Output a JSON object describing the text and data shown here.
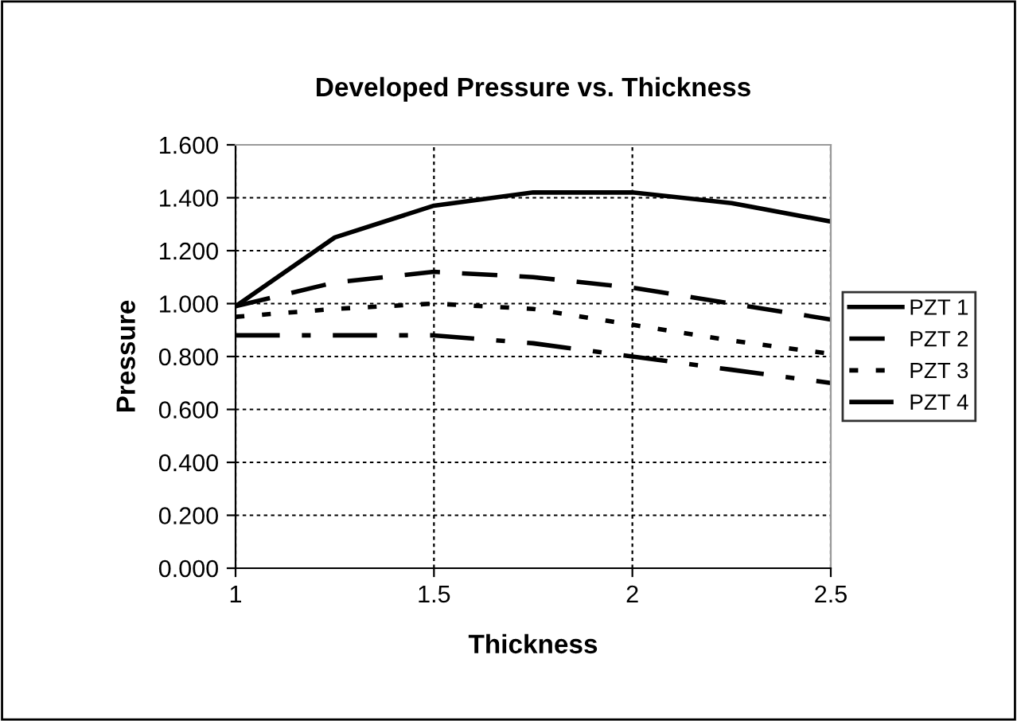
{
  "chart_data": {
    "type": "line",
    "title": "Developed Pressure vs. Thickness",
    "xlabel": "Thickness",
    "ylabel": "Pressure",
    "x": [
      1,
      1.25,
      1.5,
      1.75,
      2,
      2.25,
      2.5
    ],
    "xlim": [
      1,
      2.5
    ],
    "xticks": [
      1,
      1.5,
      2,
      2.5
    ],
    "ylim": [
      0,
      1.6
    ],
    "yticks": [
      {
        "value": 0,
        "label": "0.000"
      },
      {
        "value": 0.2,
        "label": "0.200"
      },
      {
        "value": 0.4,
        "label": "0.400"
      },
      {
        "value": 0.6,
        "label": "0.600"
      },
      {
        "value": 0.8,
        "label": "0.800"
      },
      {
        "value": 1.0,
        "label": "1.000"
      },
      {
        "value": 1.2,
        "label": "1.200"
      },
      {
        "value": 1.4,
        "label": "1.400"
      },
      {
        "value": 1.6,
        "label": "1.600"
      }
    ],
    "grid": true,
    "legend": "right",
    "marker": "none",
    "series": [
      {
        "name": "PZT 1",
        "color": "#000000",
        "line_style": "solid",
        "values": [
          0.99,
          1.25,
          1.37,
          1.42,
          1.42,
          1.38,
          1.31
        ]
      },
      {
        "name": "PZT 2",
        "color": "#000000",
        "line_style": "dashed",
        "values": [
          0.99,
          1.08,
          1.12,
          1.1,
          1.06,
          1.0,
          0.94
        ]
      },
      {
        "name": "PZT 3",
        "color": "#000000",
        "line_style": "dotted",
        "values": [
          0.95,
          0.98,
          1.0,
          0.98,
          0.92,
          0.86,
          0.81
        ]
      },
      {
        "name": "PZT 4",
        "color": "#000000",
        "line_style": "dashdot",
        "values": [
          0.88,
          0.88,
          0.88,
          0.85,
          0.8,
          0.75,
          0.7
        ]
      }
    ]
  }
}
